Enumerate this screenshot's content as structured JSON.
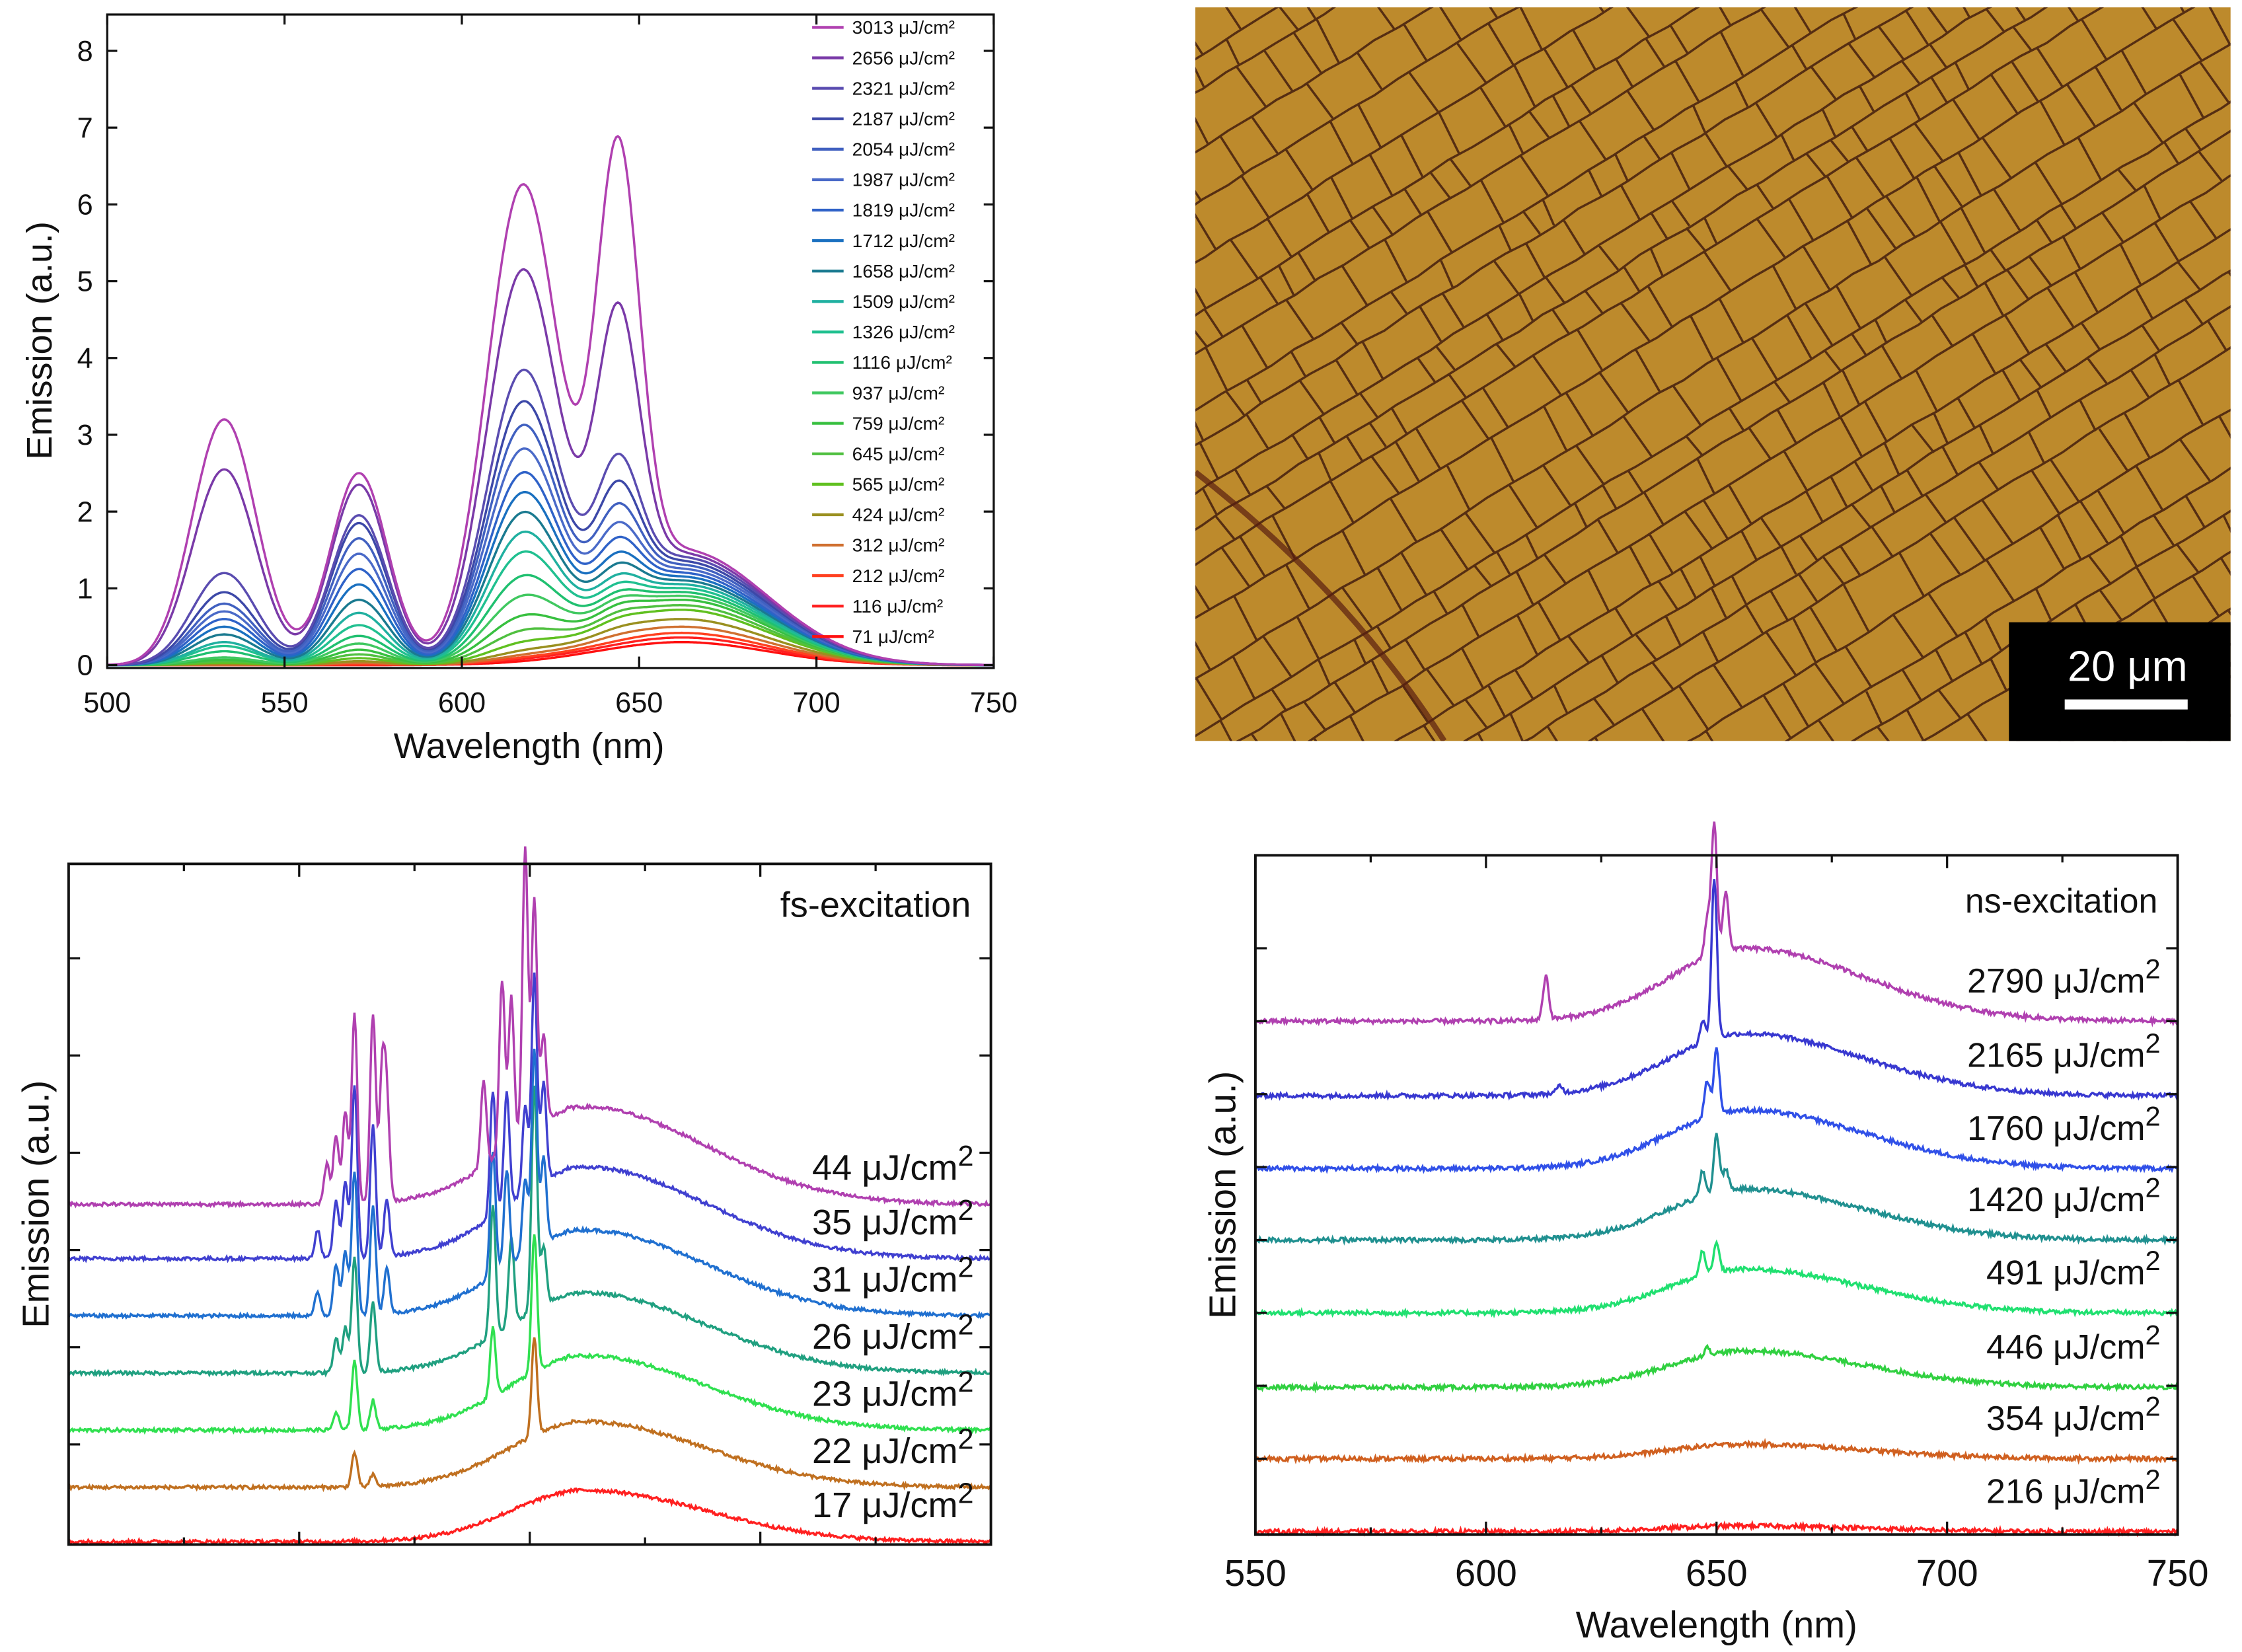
{
  "chart_data": [
    {
      "type": "line",
      "panel": "top-left",
      "xlabel": "Wavelength (nm)",
      "ylabel": "Emission (a.u.)",
      "xlim": [
        500,
        750
      ],
      "ylim": [
        0,
        8.5
      ],
      "xticks": [
        "500",
        "550",
        "600",
        "650",
        "700",
        "750"
      ],
      "yticks": [
        "0",
        "1",
        "2",
        "3",
        "4",
        "5",
        "6",
        "7",
        "8"
      ],
      "legend_position": "top-right",
      "model_components_nm": [
        533,
        571,
        617,
        644,
        662
      ],
      "series": [
        {
          "name": "3013 μJ/cm²",
          "color": "#b040b0",
          "peaks": [
            3.2,
            2.5,
            6.0,
            5.6,
            1.5
          ]
        },
        {
          "name": "2656 μJ/cm²",
          "color": "#7a3aa8",
          "peaks": [
            2.55,
            2.35,
            4.9,
            3.5,
            1.45
          ]
        },
        {
          "name": "2321 μJ/cm²",
          "color": "#5a4cb0",
          "peaks": [
            1.2,
            1.95,
            3.6,
            1.6,
            1.4
          ]
        },
        {
          "name": "2187 μJ/cm²",
          "color": "#3c48a8",
          "peaks": [
            0.95,
            1.85,
            3.2,
            1.3,
            1.35
          ]
        },
        {
          "name": "2054 μJ/cm²",
          "color": "#4060c0",
          "peaks": [
            0.8,
            1.65,
            2.9,
            1.05,
            1.3
          ]
        },
        {
          "name": "1987 μJ/cm²",
          "color": "#4a6ac8",
          "peaks": [
            0.7,
            1.45,
            2.6,
            0.85,
            1.25
          ]
        },
        {
          "name": "1819 μJ/cm²",
          "color": "#2f62c8",
          "peaks": [
            0.6,
            1.25,
            2.3,
            0.7,
            1.2
          ]
        },
        {
          "name": "1712 μJ/cm²",
          "color": "#1a70c0",
          "peaks": [
            0.5,
            1.05,
            2.05,
            0.55,
            1.15
          ]
        },
        {
          "name": "1658 μJ/cm²",
          "color": "#1a7a90",
          "peaks": [
            0.4,
            0.85,
            1.8,
            0.45,
            1.1
          ]
        },
        {
          "name": "1509 μJ/cm²",
          "color": "#20b0a0",
          "peaks": [
            0.3,
            0.68,
            1.55,
            0.35,
            1.05
          ]
        },
        {
          "name": "1326 μJ/cm²",
          "color": "#20c090",
          "peaks": [
            0.25,
            0.52,
            1.3,
            0.28,
            1.0
          ]
        },
        {
          "name": "1116 μJ/cm²",
          "color": "#20c070",
          "peaks": [
            0.18,
            0.38,
            1.0,
            0.22,
            0.95
          ]
        },
        {
          "name": "937 μJ/cm²",
          "color": "#40c860",
          "peaks": [
            0.1,
            0.28,
            0.75,
            0.18,
            0.9
          ]
        },
        {
          "name": "759 μJ/cm²",
          "color": "#38c040",
          "peaks": [
            0.07,
            0.2,
            0.5,
            0.14,
            0.85
          ]
        },
        {
          "name": "645 μJ/cm²",
          "color": "#50c040",
          "peaks": [
            0.05,
            0.14,
            0.32,
            0.1,
            0.78
          ]
        },
        {
          "name": "565 μJ/cm²",
          "color": "#60c020",
          "peaks": [
            0.03,
            0.09,
            0.18,
            0.07,
            0.72
          ]
        },
        {
          "name": "424 μJ/cm²",
          "color": "#9a9020",
          "peaks": [
            0.02,
            0.05,
            0.09,
            0.04,
            0.6
          ]
        },
        {
          "name": "312 μJ/cm²",
          "color": "#d07030",
          "peaks": [
            0.0,
            0.03,
            0.05,
            0.02,
            0.5
          ]
        },
        {
          "name": "212 μJ/cm²",
          "color": "#ff4020",
          "peaks": [
            0.0,
            0.01,
            0.03,
            0.0,
            0.42
          ]
        },
        {
          "name": "116 μJ/cm²",
          "color": "#ff2020",
          "peaks": [
            0.0,
            0.0,
            0.02,
            0.0,
            0.36
          ]
        },
        {
          "name": "71 μJ/cm²",
          "color": "#ff1010",
          "peaks": [
            0.0,
            0.0,
            0.0,
            0.0,
            0.3
          ]
        }
      ]
    },
    {
      "type": "line",
      "panel": "bottom-left",
      "title": "fs-excitation",
      "ylabel": "Emission (a.u.)",
      "xlim": [
        550,
        750
      ],
      "ylim": [
        0,
        11.9
      ],
      "stacked_offsets": true,
      "series": [
        {
          "name": "17 μJ/cm",
          "sup": "2",
          "color": "#ff2020",
          "offset": 0,
          "broad": 0.9,
          "spikes": []
        },
        {
          "name": "22 μJ/cm",
          "sup": "2",
          "color": "#c07020",
          "offset": 0.95,
          "broad": 1.15,
          "spikes": [
            [
              612,
              0.6
            ],
            [
              616,
              0.2
            ],
            [
              651,
              1.7
            ]
          ]
        },
        {
          "name": "23 μJ/cm",
          "sup": "2",
          "color": "#30e050",
          "offset": 1.95,
          "broad": 1.3,
          "spikes": [
            [
              608,
              0.3
            ],
            [
              612,
              1.2
            ],
            [
              616,
              0.5
            ],
            [
              642,
              1.2
            ],
            [
              651,
              2.4
            ]
          ]
        },
        {
          "name": "26 μJ/cm",
          "sup": "2",
          "color": "#20a080",
          "offset": 2.95,
          "broad": 1.4,
          "spikes": [
            [
              608,
              0.6
            ],
            [
              610,
              0.8
            ],
            [
              612,
              2.0
            ],
            [
              616,
              1.2
            ],
            [
              642,
              2.3
            ],
            [
              646,
              1.5
            ],
            [
              651,
              3.9
            ],
            [
              653,
              1.0
            ]
          ]
        },
        {
          "name": "31 μJ/cm",
          "sup": "2",
          "color": "#2070d0",
          "offset": 3.95,
          "broad": 1.5,
          "spikes": [
            [
              604,
              0.4
            ],
            [
              608,
              0.9
            ],
            [
              610,
              1.1
            ],
            [
              612,
              2.5
            ],
            [
              616,
              1.9
            ],
            [
              619,
              0.8
            ],
            [
              642,
              2.2
            ],
            [
              645,
              1.7
            ],
            [
              649,
              1.3
            ],
            [
              651,
              3.5
            ],
            [
              653,
              1.5
            ]
          ]
        },
        {
          "name": "35 μJ/cm",
          "sup": "2",
          "color": "#4040d0",
          "offset": 4.95,
          "broad": 1.6,
          "spikes": [
            [
              604,
              0.5
            ],
            [
              608,
              1.0
            ],
            [
              610,
              1.3
            ],
            [
              612,
              3.0
            ],
            [
              616,
              2.3
            ],
            [
              619,
              1.0
            ],
            [
              642,
              2.2
            ],
            [
              645,
              2.0
            ],
            [
              649,
              1.5
            ],
            [
              651,
              3.7
            ],
            [
              653,
              1.7
            ]
          ]
        },
        {
          "name": "44 μJ/cm",
          "sup": "2",
          "color": "#b040b0",
          "offset": 5.9,
          "broad": 1.7,
          "spikes": [
            [
              606,
              0.7
            ],
            [
              608,
              1.2
            ],
            [
              610,
              1.6
            ],
            [
              612,
              3.3
            ],
            [
              616,
              3.3
            ],
            [
              618,
              2.2
            ],
            [
              619,
              1.7
            ],
            [
              640,
              1.5
            ],
            [
              644,
              3.0
            ],
            [
              646,
              2.6
            ],
            [
              649,
              5.0
            ],
            [
              651,
              4.0
            ],
            [
              653,
              1.5
            ]
          ]
        }
      ]
    },
    {
      "type": "line",
      "panel": "bottom-right",
      "title": "ns-excitation",
      "xlabel": "Wavelength (nm)",
      "ylabel": "Emission (a.u.)",
      "xlim": [
        550,
        750
      ],
      "ylim": [
        0,
        9.3
      ],
      "xticks": [
        "550",
        "600",
        "650",
        "700",
        "750"
      ],
      "stacked_offsets": true,
      "series": [
        {
          "name": "216 μJ/cm",
          "sup": "2",
          "color": "#ff2020",
          "offset": 0,
          "broad": 0.08,
          "spikes": []
        },
        {
          "name": "354 μJ/cm",
          "sup": "2",
          "color": "#d06020",
          "offset": 1,
          "broad": 0.2,
          "spikes": []
        },
        {
          "name": "446 μJ/cm",
          "sup": "2",
          "color": "#30d040",
          "offset": 1.98,
          "broad": 0.5,
          "spikes": [
            [
              648,
              0.1
            ]
          ]
        },
        {
          "name": "491 μJ/cm",
          "sup": "2",
          "color": "#20e070",
          "offset": 3,
          "broad": 0.6,
          "spikes": [
            [
              647,
              0.35
            ],
            [
              650,
              0.4
            ]
          ]
        },
        {
          "name": "1420 μJ/cm",
          "sup": "2",
          "color": "#209090",
          "offset": 4,
          "broad": 0.7,
          "spikes": [
            [
              647,
              0.35
            ],
            [
              650,
              0.8
            ],
            [
              652,
              0.3
            ]
          ]
        },
        {
          "name": "1760 μJ/cm",
          "sup": "2",
          "color": "#3050e8",
          "offset": 4.98,
          "broad": 0.8,
          "spikes": [
            [
              648,
              0.5
            ],
            [
              650,
              0.9
            ]
          ]
        },
        {
          "name": "2165 μJ/cm",
          "sup": "2",
          "color": "#3838d0",
          "offset": 5.98,
          "broad": 0.85,
          "spikes": [
            [
              616,
              0.1
            ],
            [
              647,
              0.3
            ],
            [
              649.5,
              2.2
            ]
          ]
        },
        {
          "name": "2790 μJ/cm",
          "sup": "2",
          "color": "#b040b0",
          "offset": 7,
          "broad": 1.0,
          "spikes": [
            [
              613,
              0.6
            ],
            [
              648,
              0.5
            ],
            [
              649.5,
              1.8
            ],
            [
              652,
              0.8
            ]
          ]
        }
      ]
    }
  ],
  "micrograph": {
    "scale_bar_label": "20 μm"
  }
}
